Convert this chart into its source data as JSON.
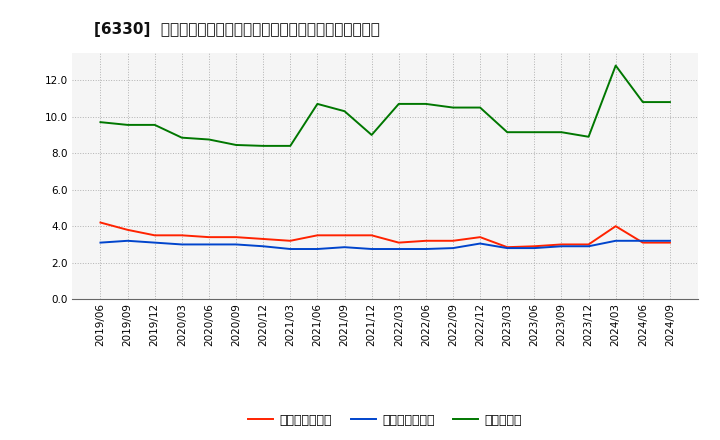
{
  "title": "[6330]  売上債権回転率、買入債務回転率、在庫回転率の推移",
  "x_labels": [
    "2019/06",
    "2019/09",
    "2019/12",
    "2020/03",
    "2020/06",
    "2020/09",
    "2020/12",
    "2021/03",
    "2021/06",
    "2021/09",
    "2021/12",
    "2022/03",
    "2022/06",
    "2022/09",
    "2022/12",
    "2023/03",
    "2023/06",
    "2023/09",
    "2023/12",
    "2024/03",
    "2024/06",
    "2024/09"
  ],
  "urikaeri": [
    4.2,
    3.8,
    3.5,
    3.5,
    3.4,
    3.4,
    3.3,
    3.2,
    3.5,
    3.5,
    3.5,
    3.1,
    3.2,
    3.2,
    3.4,
    2.85,
    2.9,
    3.0,
    3.0,
    4.0,
    3.1,
    3.1
  ],
  "kaiire": [
    3.1,
    3.2,
    3.1,
    3.0,
    3.0,
    3.0,
    2.9,
    2.75,
    2.75,
    2.85,
    2.75,
    2.75,
    2.75,
    2.8,
    3.05,
    2.8,
    2.8,
    2.9,
    2.9,
    3.2,
    3.2,
    3.2
  ],
  "zaiko": [
    9.7,
    9.55,
    9.55,
    8.85,
    8.75,
    8.45,
    8.4,
    8.4,
    10.7,
    10.3,
    9.0,
    10.7,
    10.7,
    10.5,
    10.5,
    9.15,
    9.15,
    9.15,
    8.9,
    12.8,
    10.8,
    10.8
  ],
  "urikaeri_color": "#ff2200",
  "kaiire_color": "#0044cc",
  "zaiko_color": "#007700",
  "ylim": [
    0,
    13.5
  ],
  "yticks": [
    0.0,
    2.0,
    4.0,
    6.0,
    8.0,
    10.0,
    12.0
  ],
  "legend_urikaeri": "売上債権回転率",
  "legend_kaiire": "買入債務回転率",
  "legend_zaiko": "在庫回転率",
  "bg_color": "#ffffff",
  "plot_bg_color": "#f5f5f5",
  "grid_color": "#aaaaaa",
  "title_fontsize": 11,
  "tick_fontsize": 7.5,
  "legend_fontsize": 9
}
